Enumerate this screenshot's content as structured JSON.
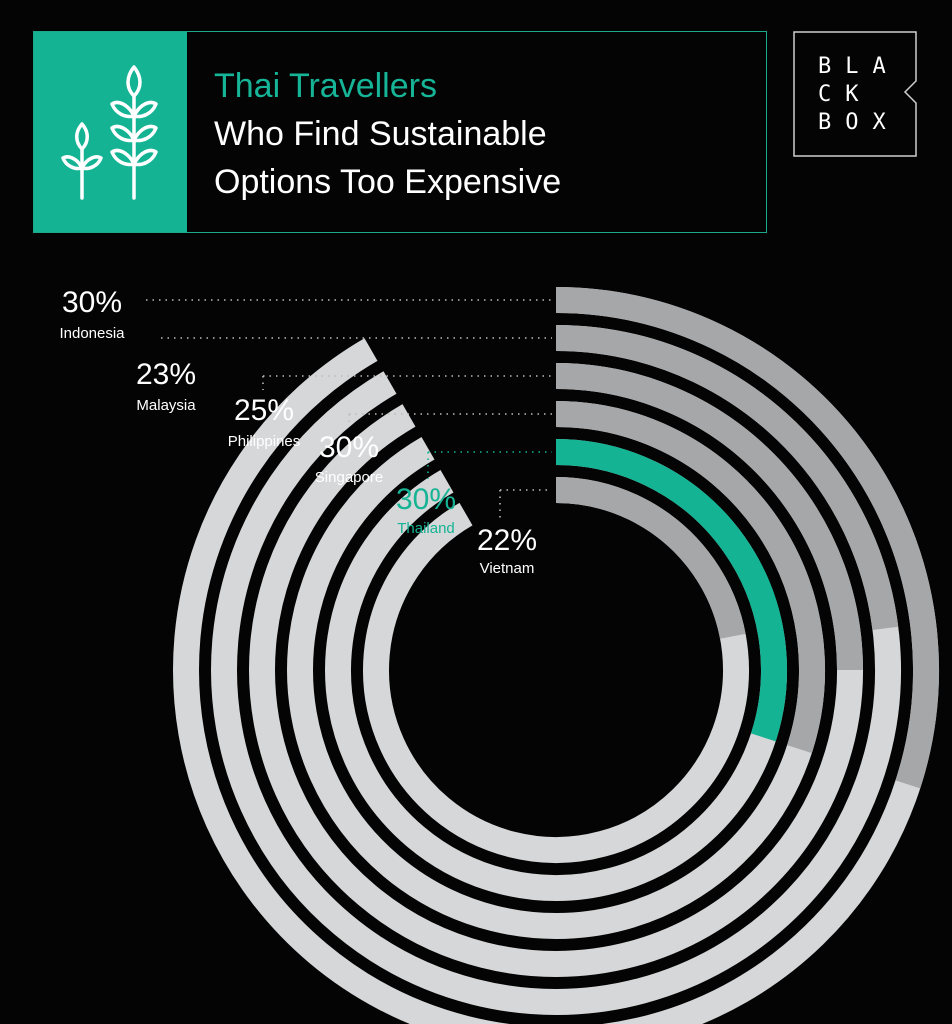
{
  "title": {
    "line1": "Thai Travellers",
    "line2": "Who Find Sustainable",
    "line3": "Options Too Expensive"
  },
  "logo": {
    "rows": [
      "BLA",
      "CK",
      "BOX"
    ]
  },
  "icon": "wheat-stalks-icon",
  "colors": {
    "background": "#040404",
    "accent": "#13b394",
    "value_arc": "#a6a7a9",
    "track": "#d6d7d8"
  },
  "chart_data": {
    "type": "radial-bar",
    "highlight": "Thailand",
    "categories": [
      "Indonesia",
      "Malaysia",
      "Philippines",
      "Singapore",
      "Thailand",
      "Vietnam"
    ],
    "values": [
      30,
      23,
      25,
      30,
      30,
      22
    ],
    "value_labels": [
      "30%",
      "23%",
      "25%",
      "30%",
      "30%",
      "22%"
    ]
  }
}
